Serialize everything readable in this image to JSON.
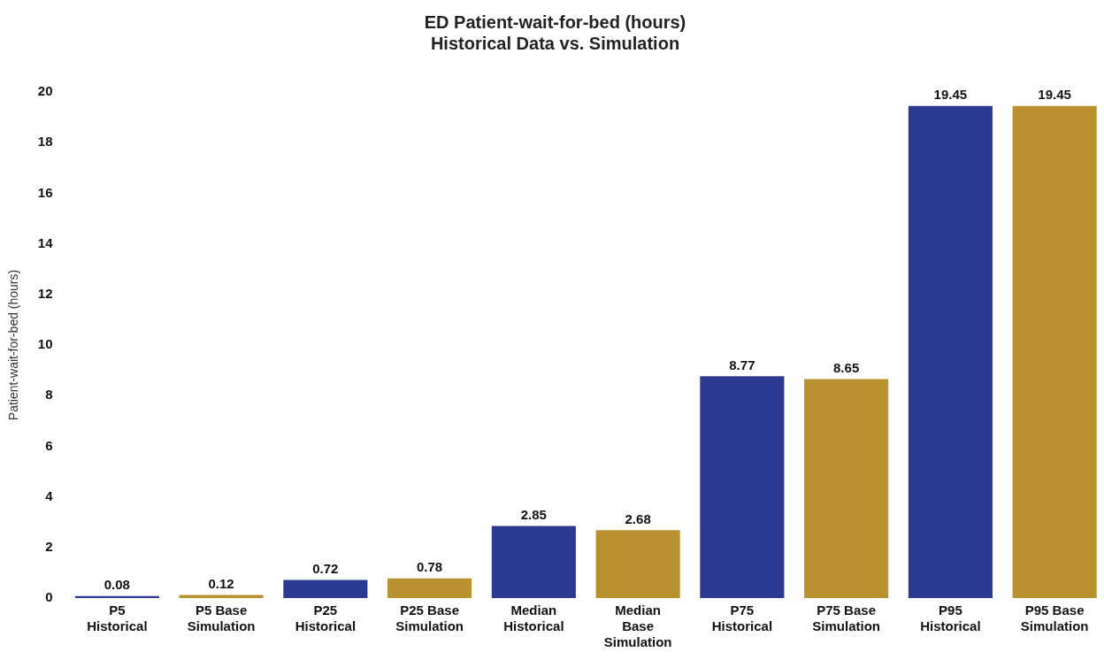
{
  "chart_data": {
    "type": "bar",
    "title": "ED Patient-wait-for-bed (hours)",
    "subtitle": "Historical Data vs. Simulation",
    "ylabel": "Patient-wait-for-bed (hours)",
    "categories": [
      "P5 Historical",
      "P5 Base Simulation",
      "P25 Historical",
      "P25 Base Simulation",
      "Median Historical",
      "Median Base Simulation",
      "P75 Historical",
      "P75 Base Simulation",
      "P95 Historical",
      "P95 Base Simulation"
    ],
    "values": [
      0.08,
      0.12,
      0.72,
      0.78,
      2.85,
      2.68,
      8.77,
      8.65,
      19.45,
      19.45
    ],
    "colors": [
      "#2b3990",
      "#b8922e",
      "#2b3990",
      "#b8922e",
      "#2b3990",
      "#b8922e",
      "#2b3990",
      "#b8922e",
      "#2b3990",
      "#b8922e"
    ],
    "ylim": [
      0,
      20
    ],
    "yticks": [
      0,
      2,
      4,
      6,
      8,
      10,
      12,
      14,
      16,
      18,
      20
    ],
    "grid": false,
    "legend": false,
    "data_labels": true
  }
}
